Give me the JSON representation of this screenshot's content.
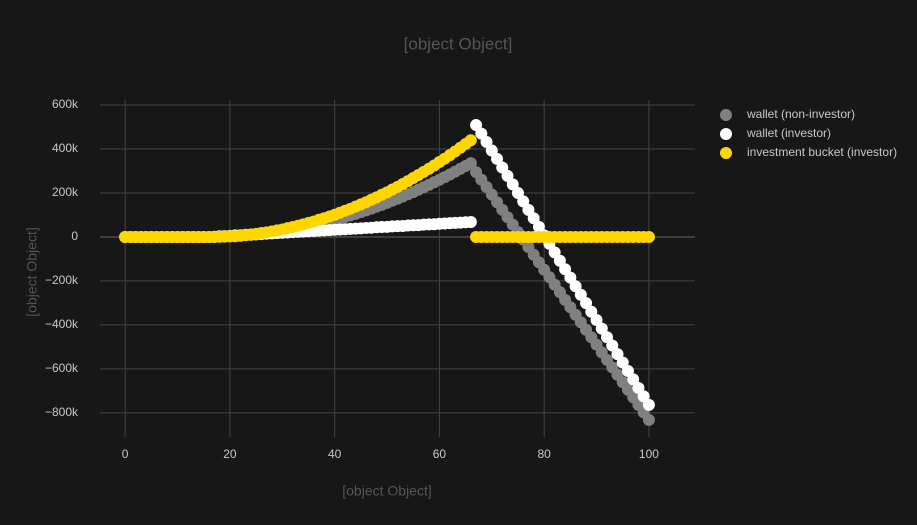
{
  "chart_data": {
    "type": "scatter",
    "title": "[object Object]",
    "x_label": "[object Object]",
    "y_label": "[object Object]",
    "x": [
      0,
      1,
      2,
      3,
      4,
      5,
      6,
      7,
      8,
      9,
      10,
      11,
      12,
      13,
      14,
      15,
      16,
      17,
      18,
      19,
      20,
      21,
      22,
      23,
      24,
      25,
      26,
      27,
      28,
      29,
      30,
      31,
      32,
      33,
      34,
      35,
      36,
      37,
      38,
      39,
      40,
      41,
      42,
      43,
      44,
      45,
      46,
      47,
      48,
      49,
      50,
      51,
      52,
      53,
      54,
      55,
      56,
      57,
      58,
      59,
      60,
      61,
      62,
      63,
      64,
      65,
      66,
      67,
      68,
      69,
      70,
      71,
      72,
      73,
      74,
      75,
      76,
      77,
      78,
      79,
      80,
      81,
      82,
      83,
      84,
      85,
      86,
      87,
      88,
      89,
      90,
      91,
      92,
      93,
      94,
      95,
      96,
      97,
      98,
      99,
      100
    ],
    "series": [
      {
        "name": "wallet (non-investor)",
        "color": "#808080",
        "values": [
          0,
          0,
          0,
          0,
          0,
          0,
          0,
          0,
          0,
          0,
          0,
          0,
          0,
          0,
          0,
          0,
          0,
          0,
          1000,
          1000,
          2000,
          3000,
          5000,
          7000,
          9000,
          11000,
          13000,
          16000,
          19000,
          23000,
          26000,
          30000,
          34000,
          39000,
          44000,
          49000,
          54000,
          59000,
          65000,
          71000,
          77000,
          84000,
          91000,
          98000,
          105000,
          113000,
          121000,
          129000,
          138000,
          146000,
          155000,
          165000,
          174000,
          184000,
          194000,
          204000,
          215000,
          226000,
          237000,
          249000,
          260000,
          272000,
          284000,
          297000,
          310000,
          323000,
          336000,
          295000,
          261000,
          227000,
          193000,
          158000,
          124000,
          90000,
          56000,
          22000,
          -12000,
          -46000,
          -81000,
          -115000,
          -149000,
          -183000,
          -217000,
          -251000,
          -286000,
          -320000,
          -354000,
          -388000,
          -422000,
          -456000,
          -490000,
          -525000,
          -559000,
          -593000,
          -627000,
          -661000,
          -695000,
          -730000,
          -764000,
          -798000,
          -832000
        ]
      },
      {
        "name": "wallet (investor)",
        "color": "#ffffff",
        "values": [
          0,
          0,
          0,
          0,
          0,
          0,
          0,
          0,
          0,
          0,
          0,
          0,
          0,
          0,
          0,
          0,
          0,
          1000,
          3000,
          4000,
          5000,
          7000,
          8000,
          10000,
          11000,
          12000,
          14000,
          15000,
          16000,
          18000,
          19000,
          20000,
          22000,
          23000,
          24000,
          26000,
          27000,
          29000,
          30000,
          31000,
          33000,
          34000,
          35000,
          37000,
          38000,
          39000,
          41000,
          42000,
          44000,
          45000,
          46000,
          48000,
          49000,
          50000,
          52000,
          53000,
          54000,
          56000,
          57000,
          58000,
          60000,
          61000,
          63000,
          64000,
          65000,
          67000,
          68000,
          509000,
          470000,
          432000,
          393000,
          355000,
          316000,
          278000,
          239000,
          200000,
          162000,
          123000,
          85000,
          46000,
          7000,
          -31000,
          -70000,
          -108000,
          -147000,
          -185000,
          -224000,
          -263000,
          -301000,
          -340000,
          -378000,
          -417000,
          -456000,
          -494000,
          -533000,
          -571000,
          -610000,
          -648000,
          -687000,
          -725000,
          -764000
        ]
      },
      {
        "name": "investment bucket (investor)",
        "color": "#ffd700",
        "values": [
          0,
          0,
          0,
          0,
          0,
          0,
          0,
          0,
          0,
          0,
          0,
          0,
          0,
          0,
          0,
          0,
          0,
          0,
          1000,
          2000,
          3000,
          4000,
          6000,
          9000,
          11000,
          14000,
          18000,
          21000,
          25000,
          30000,
          34000,
          40000,
          45000,
          51000,
          57000,
          64000,
          70000,
          78000,
          85000,
          93000,
          101000,
          110000,
          119000,
          128000,
          138000,
          148000,
          158000,
          169000,
          180000,
          192000,
          203000,
          216000,
          228000,
          241000,
          254000,
          268000,
          282000,
          296000,
          310000,
          325000,
          341000,
          356000,
          372000,
          389000,
          406000,
          423000,
          440000,
          0,
          0,
          0,
          0,
          0,
          0,
          0,
          0,
          0,
          0,
          0,
          0,
          0,
          0,
          0,
          0,
          0,
          0,
          0,
          0,
          0,
          0,
          0,
          0,
          0,
          0,
          0,
          0,
          0,
          0,
          0,
          0,
          0,
          0
        ]
      }
    ],
    "xlim": [
      -4.8,
      108.8
    ],
    "xticks": [
      0,
      20,
      40,
      60,
      80,
      100
    ],
    "ylim": [
      -910000,
      623000
    ],
    "yticks": [
      {
        "value": -800000,
        "label": "−800k"
      },
      {
        "value": -600000,
        "label": "−600k"
      },
      {
        "value": -400000,
        "label": "−400k"
      },
      {
        "value": -200000,
        "label": "−200k"
      },
      0,
      {
        "value": 200000,
        "label": "200k"
      },
      {
        "value": 400000,
        "label": "400k"
      },
      {
        "value": 600000,
        "label": "600k"
      }
    ],
    "grid": true,
    "legend": "top-right"
  }
}
